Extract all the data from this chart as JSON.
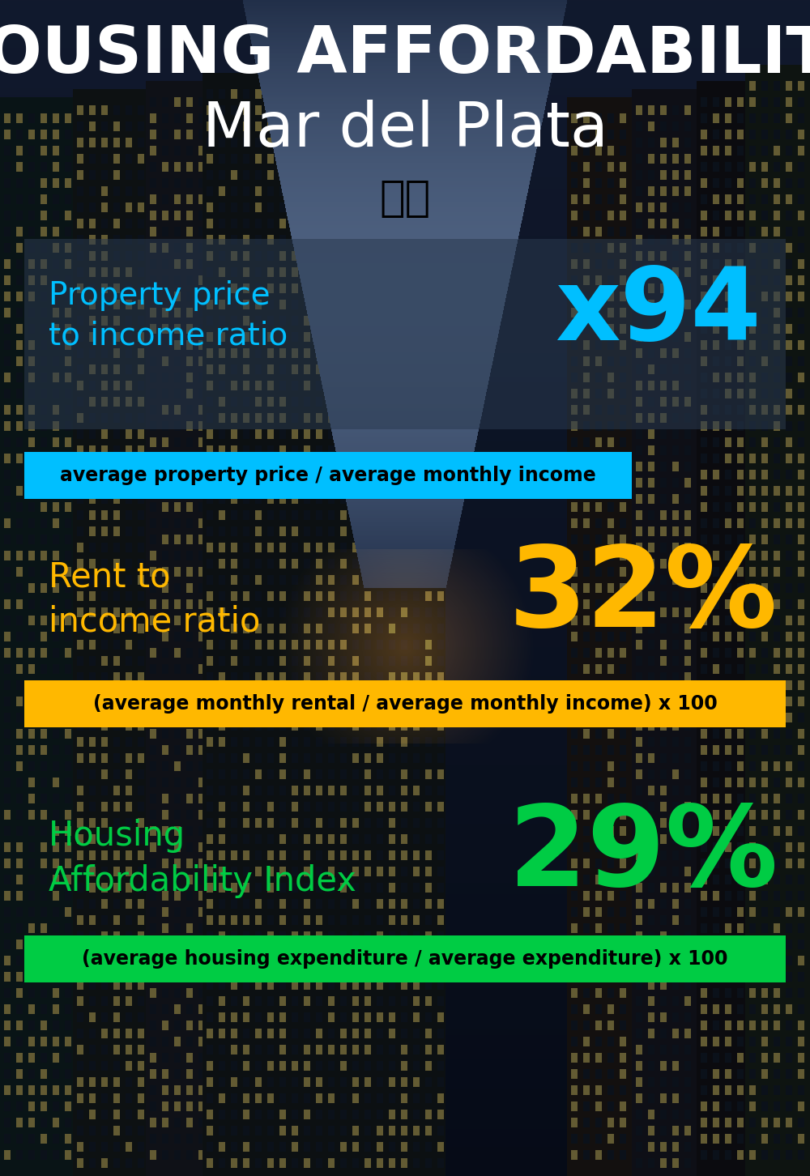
{
  "title_line1": "HOUSING AFFORDABILITY",
  "title_line2": "Mar del Plata",
  "flag_emoji": "🇦🇷",
  "section1_label": "Property price\nto income ratio",
  "section1_value": "x94",
  "section1_label_color": "#00BFFF",
  "section1_value_color": "#00BFFF",
  "section1_formula": "average property price / average monthly income",
  "section1_formula_bg": "#00BFFF",
  "section2_label": "Rent to\nincome ratio",
  "section2_value": "32%",
  "section2_label_color": "#FFB800",
  "section2_value_color": "#FFB800",
  "section2_formula": "(average monthly rental / average monthly income) x 100",
  "section2_formula_bg": "#FFB800",
  "section3_label": "Housing\nAffordability Index",
  "section3_value": "29%",
  "section3_label_color": "#00CC44",
  "section3_value_color": "#00CC44",
  "section3_formula": "(average housing expenditure / average expenditure) x 100",
  "section3_formula_bg": "#00CC44",
  "bg_color": "#0a1628",
  "title_color": "#ffffff",
  "formula_text_color": "#000000",
  "panel1_color": "#1a2a40",
  "panel1_alpha": 0.65
}
